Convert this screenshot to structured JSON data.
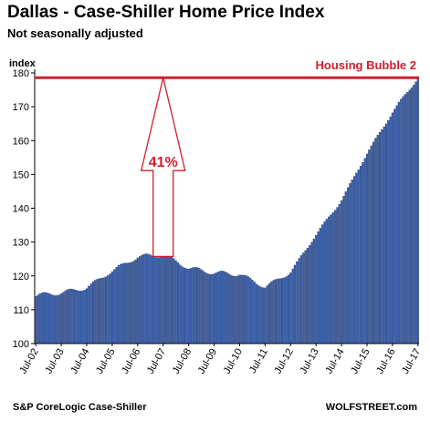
{
  "title": "Dallas - Case-Shiller Home Price Index",
  "subtitle": "Not seasonally adjusted",
  "source": "S&P CoreLogic Case-Shiller",
  "brand": "WOLFSTREET.com",
  "colors": {
    "bar": "#3a5fa8",
    "bar_edge": "#1c2f5e",
    "accent": "#d0202e"
  },
  "chart_data": {
    "type": "bar",
    "ylabel": "index",
    "ylim": [
      100,
      180
    ],
    "yticks": [
      100,
      110,
      120,
      130,
      140,
      150,
      160,
      170,
      180
    ],
    "grid": false,
    "xticklabels": [
      "Jul-02",
      "Jul-03",
      "Jul-04",
      "Jul-05",
      "Jul-06",
      "Jul-07",
      "Jul-08",
      "Jul-09",
      "Jul-10",
      "Jul-11",
      "Jul-12",
      "Jul-13",
      "Jul-14",
      "Jul-15",
      "Jul-16",
      "Jul-17"
    ],
    "x_start": "2002-07",
    "x_end": "2017-07",
    "annual_values": [
      114.2,
      115.0,
      116.5,
      121.5,
      125.6,
      126.3,
      122.3,
      120.9,
      120.5,
      116.7,
      121.1,
      132.2,
      142.4,
      156.2,
      168.4,
      178.6
    ],
    "reference_line": {
      "value": 178.6,
      "label": "Housing Bubble 2"
    },
    "annotation": {
      "label": "41%",
      "from": 126.3,
      "to": 178.6
    }
  }
}
